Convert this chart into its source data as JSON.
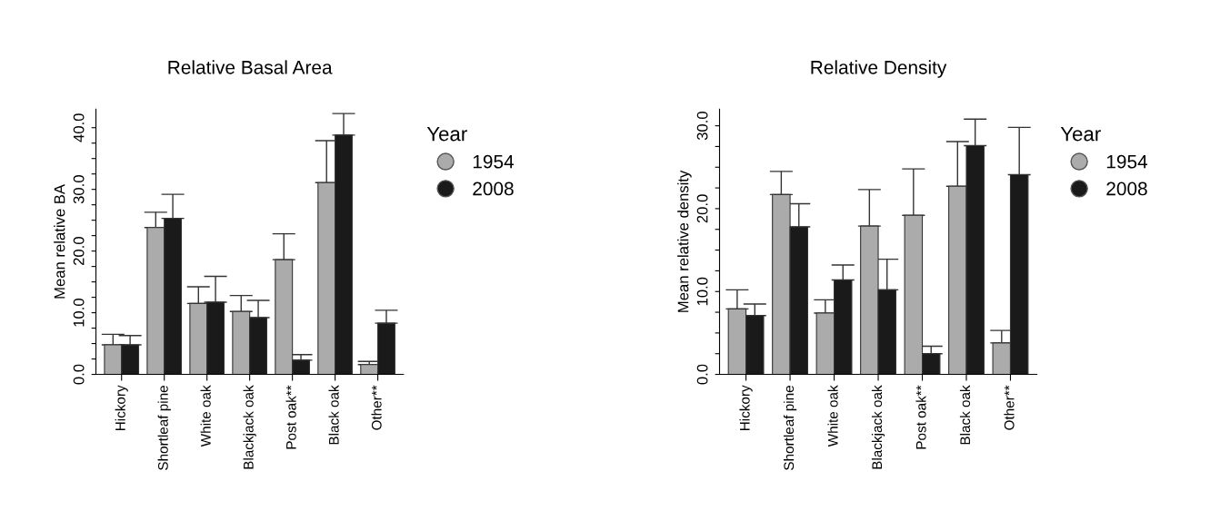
{
  "chart_data": [
    {
      "type": "bar",
      "title": "Relative Basal Area",
      "ylabel": "Mean relative BA",
      "legend_title": "Year",
      "legend": "right",
      "categories": [
        "Hickory",
        "Shortleaf pine",
        "White oak",
        "Blackjack oak",
        "Post oak**",
        "Black oak",
        "Other**"
      ],
      "series": [
        {
          "name": "1954",
          "color": "#ababab",
          "values": [
            4.8,
            23.8,
            11.5,
            10.2,
            18.6,
            31.1,
            1.6
          ],
          "errors": [
            1.7,
            2.5,
            2.7,
            2.6,
            4.2,
            6.8,
            0.5
          ]
        },
        {
          "name": "2008",
          "color": "#1a1a1a",
          "values": [
            4.8,
            25.3,
            11.7,
            9.2,
            2.3,
            38.8,
            8.3
          ],
          "errors": [
            1.5,
            3.9,
            4.2,
            2.8,
            0.9,
            3.5,
            2.1
          ]
        }
      ],
      "ylim": [
        0,
        43
      ],
      "yticks": [
        {
          "value": 0,
          "label": "0.0"
        },
        {
          "value": 2.5,
          "label": null
        },
        {
          "value": 5,
          "label": null
        },
        {
          "value": 7.5,
          "label": null
        },
        {
          "value": 10,
          "label": "10.0"
        },
        {
          "value": 12.5,
          "label": null
        },
        {
          "value": 15,
          "label": null
        },
        {
          "value": 17.5,
          "label": null
        },
        {
          "value": 20,
          "label": "20.0"
        },
        {
          "value": 22.5,
          "label": null
        },
        {
          "value": 25,
          "label": null
        },
        {
          "value": 27.5,
          "label": null
        },
        {
          "value": 30,
          "label": "30.0"
        },
        {
          "value": 32.5,
          "label": null
        },
        {
          "value": 35,
          "label": null
        },
        {
          "value": 37.5,
          "label": null
        },
        {
          "value": 40,
          "label": "40.0"
        }
      ],
      "grid": false
    },
    {
      "type": "bar",
      "title": "Relative Density",
      "ylabel": "Mean relative density",
      "legend_title": "Year",
      "legend": "right",
      "categories": [
        "Hickory",
        "Shortleaf pine",
        "White oak",
        "Blackjack oak",
        "Post oak**",
        "Black oak",
        "Other**"
      ],
      "series": [
        {
          "name": "1954",
          "color": "#ababab",
          "values": [
            7.9,
            21.7,
            7.4,
            17.9,
            19.2,
            22.7,
            3.8
          ],
          "errors": [
            2.3,
            2.8,
            1.6,
            4.4,
            5.6,
            5.4,
            1.5
          ]
        },
        {
          "name": "2008",
          "color": "#1a1a1a",
          "values": [
            7.1,
            17.8,
            11.4,
            10.2,
            2.5,
            27.6,
            24.1
          ],
          "errors": [
            1.4,
            2.8,
            1.8,
            3.7,
            0.9,
            3.2,
            5.7
          ]
        }
      ],
      "ylim": [
        0,
        32
      ],
      "yticks": [
        {
          "value": 0,
          "label": "0.0"
        },
        {
          "value": 2.5,
          "label": null
        },
        {
          "value": 5,
          "label": null
        },
        {
          "value": 7.5,
          "label": null
        },
        {
          "value": 10,
          "label": "10.0"
        },
        {
          "value": 12.5,
          "label": null
        },
        {
          "value": 15,
          "label": null
        },
        {
          "value": 17.5,
          "label": null
        },
        {
          "value": 20,
          "label": "20.0"
        },
        {
          "value": 22.5,
          "label": null
        },
        {
          "value": 25,
          "label": null
        },
        {
          "value": 27.5,
          "label": null
        },
        {
          "value": 30,
          "label": "30.0"
        }
      ],
      "grid": false
    }
  ]
}
